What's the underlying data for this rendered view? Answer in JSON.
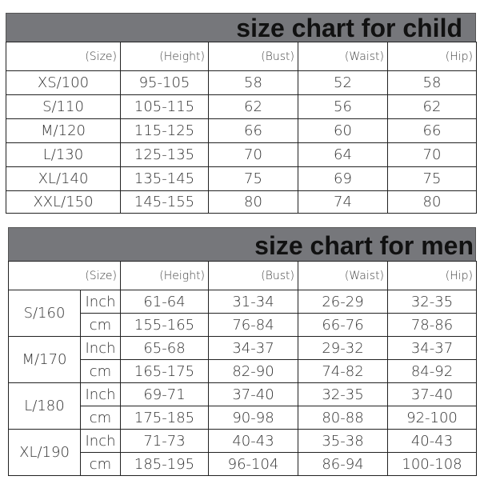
{
  "child": {
    "title": "size chart for child",
    "headers": [
      "(Size)",
      "(Height)",
      "(Bust)",
      "(Waist)",
      "(Hip)"
    ],
    "rows": [
      [
        "XS/100",
        "95-105",
        "58",
        "52",
        "58"
      ],
      [
        "S/110",
        "105-115",
        "62",
        "56",
        "62"
      ],
      [
        "M/120",
        "115-125",
        "66",
        "60",
        "66"
      ],
      [
        "L/130",
        "125-135",
        "70",
        "64",
        "70"
      ],
      [
        "XL/140",
        "135-145",
        "75",
        "69",
        "75"
      ],
      [
        "XXL/150",
        "145-155",
        "80",
        "74",
        "80"
      ]
    ]
  },
  "men": {
    "title": "size chart for men",
    "headers": [
      "(Size)",
      "(Height)",
      "(Bust)",
      "(Waist)",
      "(Hip)"
    ],
    "rows": [
      {
        "size": "S/160",
        "inch": [
          "Inch",
          "61-64",
          "31-34",
          "26-29",
          "32-35"
        ],
        "cm": [
          "cm",
          "155-165",
          "76-84",
          "66-76",
          "78-86"
        ]
      },
      {
        "size": "M/170",
        "inch": [
          "Inch",
          "65-68",
          "34-37",
          "29-32",
          "34-37"
        ],
        "cm": [
          "cm",
          "165-175",
          "82-90",
          "74-82",
          "84-92"
        ]
      },
      {
        "size": "L/180",
        "inch": [
          "Inch",
          "69-71",
          "37-40",
          "32-35",
          "37-40"
        ],
        "cm": [
          "cm",
          "175-185",
          "90-98",
          "80-88",
          "92-100"
        ]
      },
      {
        "size": "XL/190",
        "inch": [
          "Inch",
          "71-73",
          "40-43",
          "35-38",
          "40-43"
        ],
        "cm": [
          "cm",
          "185-195",
          "96-104",
          "86-94",
          "100-108"
        ]
      }
    ]
  }
}
